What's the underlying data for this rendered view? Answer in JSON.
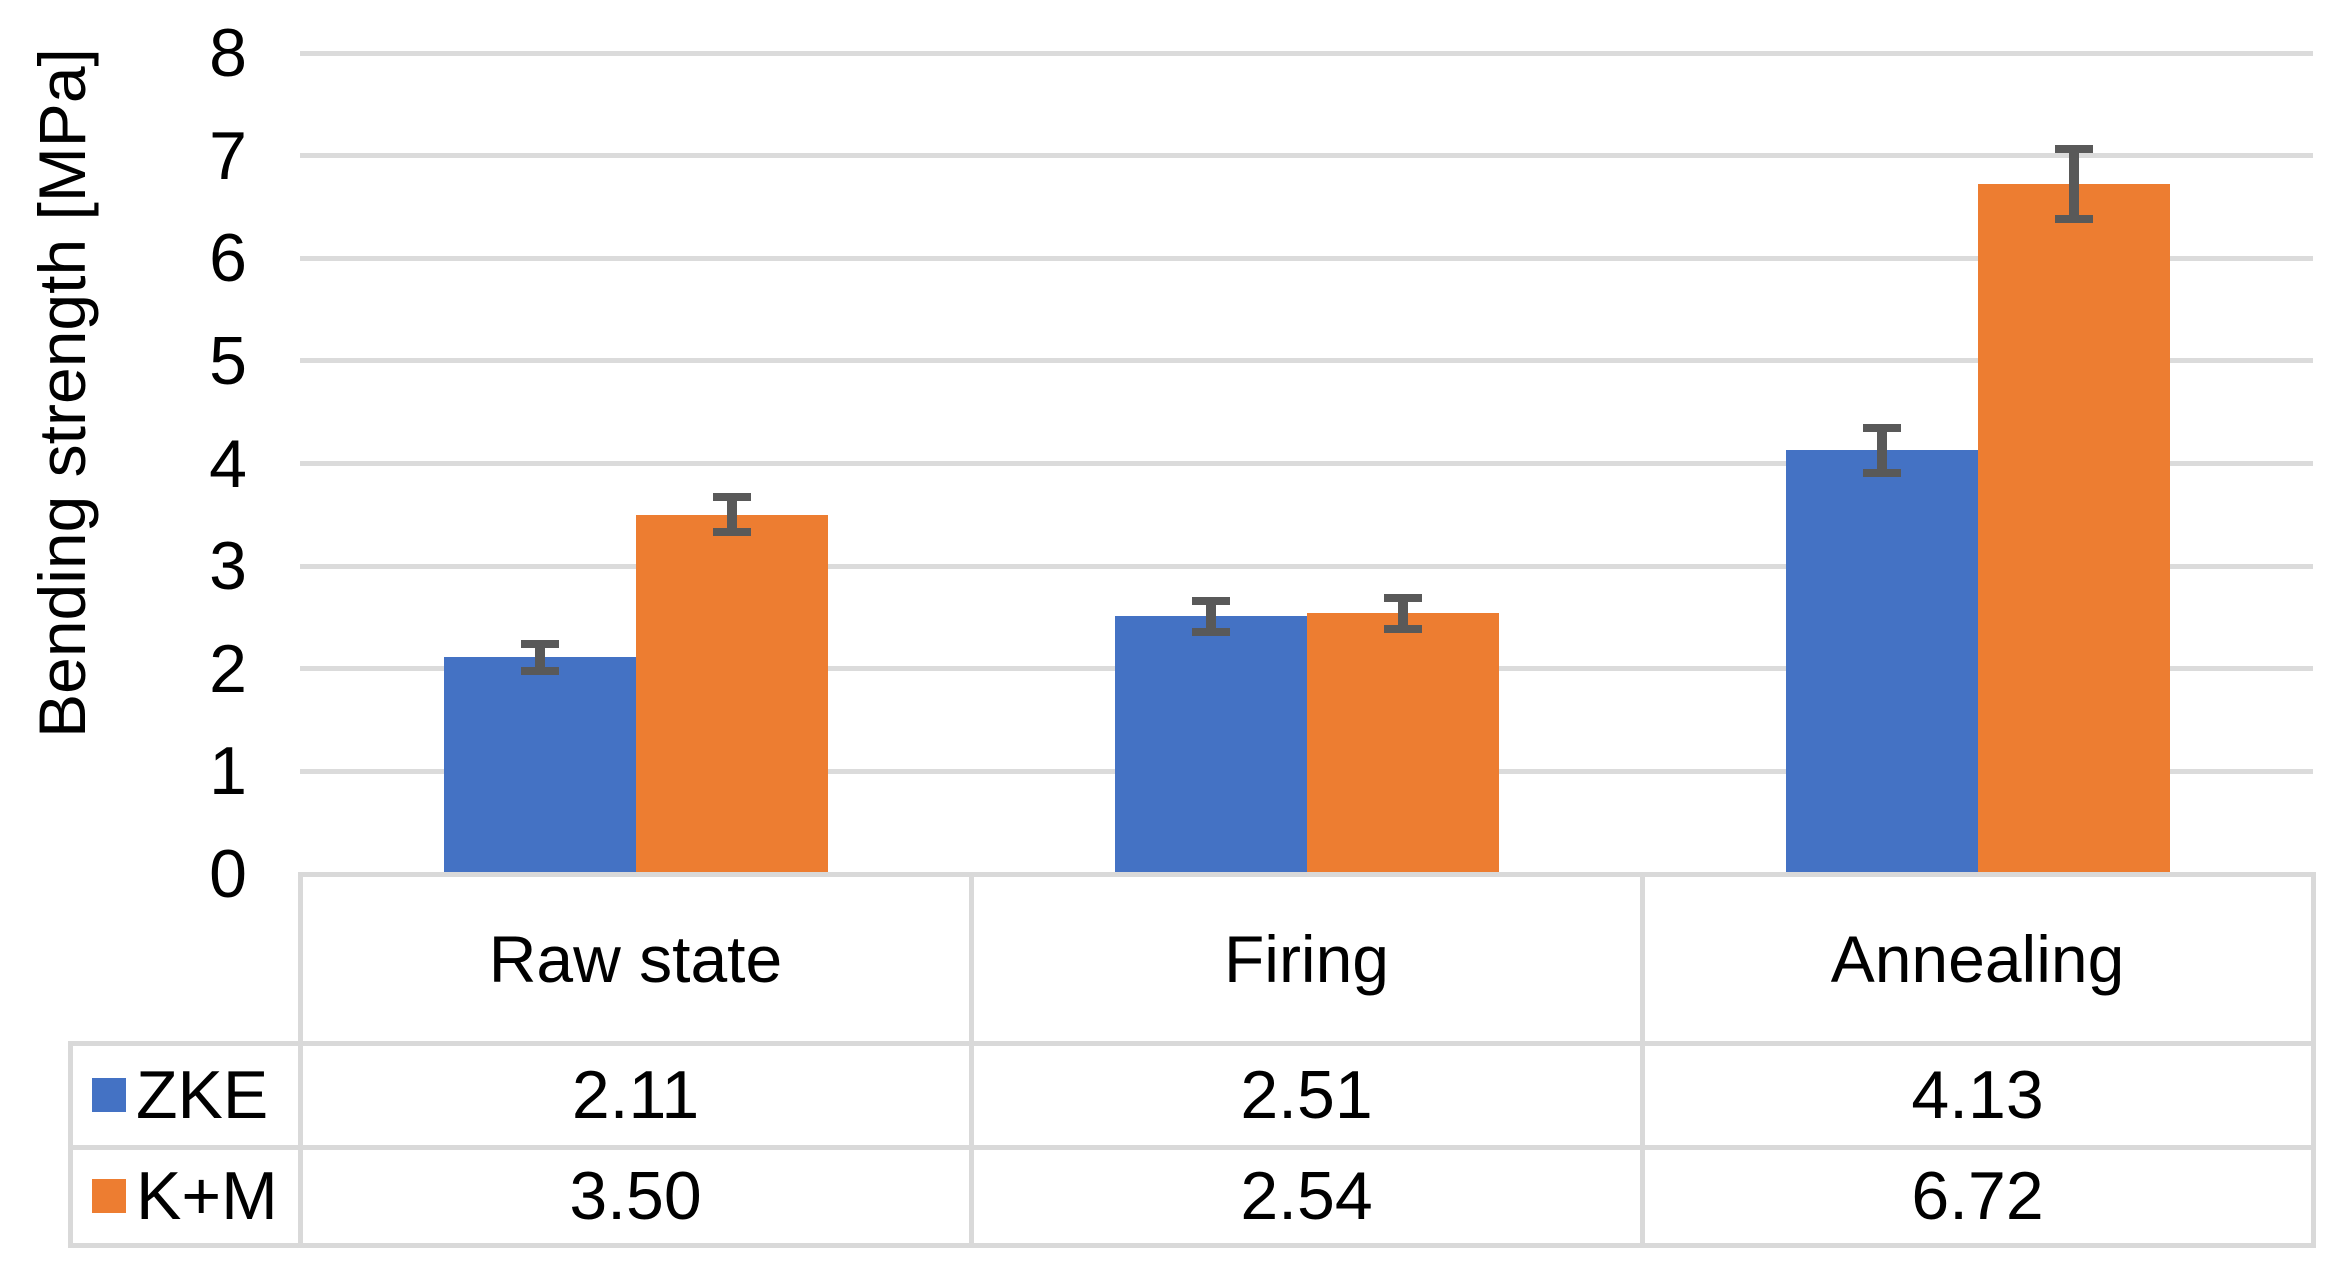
{
  "chart_data": {
    "type": "bar",
    "title": "",
    "ylabel": "Bending strength [MPa]",
    "xlabel": "",
    "ylim": [
      0,
      8
    ],
    "ytick_labels": [
      "0",
      "1",
      "2",
      "3",
      "4",
      "5",
      "6",
      "7",
      "8"
    ],
    "grid": true,
    "legend_position": "data-table-left",
    "categories": [
      "Raw state",
      "Firing",
      "Annealing"
    ],
    "series": [
      {
        "name": "ZKE",
        "color": "#4472C4",
        "values": [
          2.11,
          2.51,
          4.13
        ],
        "errors": [
          0.13,
          0.15,
          0.22
        ]
      },
      {
        "name": "K+M",
        "color": "#ED7D31",
        "values": [
          3.5,
          2.54,
          6.72
        ],
        "errors": [
          0.17,
          0.15,
          0.34
        ]
      }
    ],
    "error_bar_color": "#595959",
    "gridline_color": "#DBDBDB"
  },
  "data_table": {
    "border_color": "#D9D9D9",
    "header": [
      "Raw state",
      "Firing",
      "Annealing"
    ],
    "rows": [
      {
        "label": "ZKE",
        "swatch_color": "#4472C4",
        "values": [
          "2.11",
          "2.51",
          "4.13"
        ]
      },
      {
        "label": "K+M",
        "swatch_color": "#ED7D31",
        "values": [
          "3.50",
          "2.54",
          "6.72"
        ]
      }
    ]
  }
}
